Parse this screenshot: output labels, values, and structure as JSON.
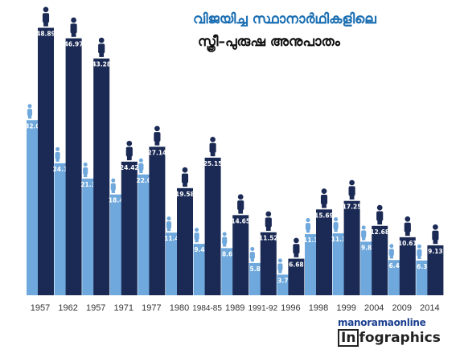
{
  "header": {
    "title_line1": "വിജയിച്ച സ്ഥാനാർഥികളിലെ",
    "title_line2": "സ്ത്രീ–പുരുഷ അനുപാതം"
  },
  "brand": {
    "line1": "manoramaonline",
    "box": "In",
    "rest": "fographics"
  },
  "colors": {
    "women": "#6fa8dc",
    "men": "#1b2a55",
    "axis_text": "#333333"
  },
  "chart_data": {
    "type": "bar",
    "categories": [
      "1957",
      "1962",
      "1957",
      "1971",
      "1977",
      "1980",
      "1984-85",
      "1989",
      "1991-92",
      "1996",
      "1998",
      "1999",
      "2004",
      "2009",
      "2014"
    ],
    "series": [
      {
        "values": [
          32.02,
          24.13,
          21.33,
          18.42,
          22.08,
          11.46,
          9.4,
          8.62,
          5.89,
          3.77,
          11.17,
          11.32,
          9.8,
          6.44,
          6.36
        ]
      },
      {
        "values": [
          48.89,
          46.97,
          43.28,
          24.42,
          27.14,
          19.58,
          25.15,
          14.65,
          11.52,
          6.68,
          15.69,
          17.25,
          12.68,
          10.61,
          9.13
        ]
      }
    ],
    "value_labels": [
      [
        "32.02",
        "24.13",
        "21.33",
        "18.42",
        "22.08",
        "11.46",
        "9.40",
        "8.62",
        "5.89",
        "3.77",
        "11.17",
        "11.32",
        "9.80",
        "6.44",
        "6.36"
      ],
      [
        "48.89",
        "46.97",
        "43.28",
        "24.42",
        "27.14",
        "19.58",
        "25.15",
        "14.65",
        "11.52",
        "6.68",
        "15.69",
        "17.25",
        "12.68",
        "10.61",
        "9.13"
      ]
    ],
    "ylim": [
      0,
      50
    ],
    "grid": false,
    "legend": "none"
  }
}
